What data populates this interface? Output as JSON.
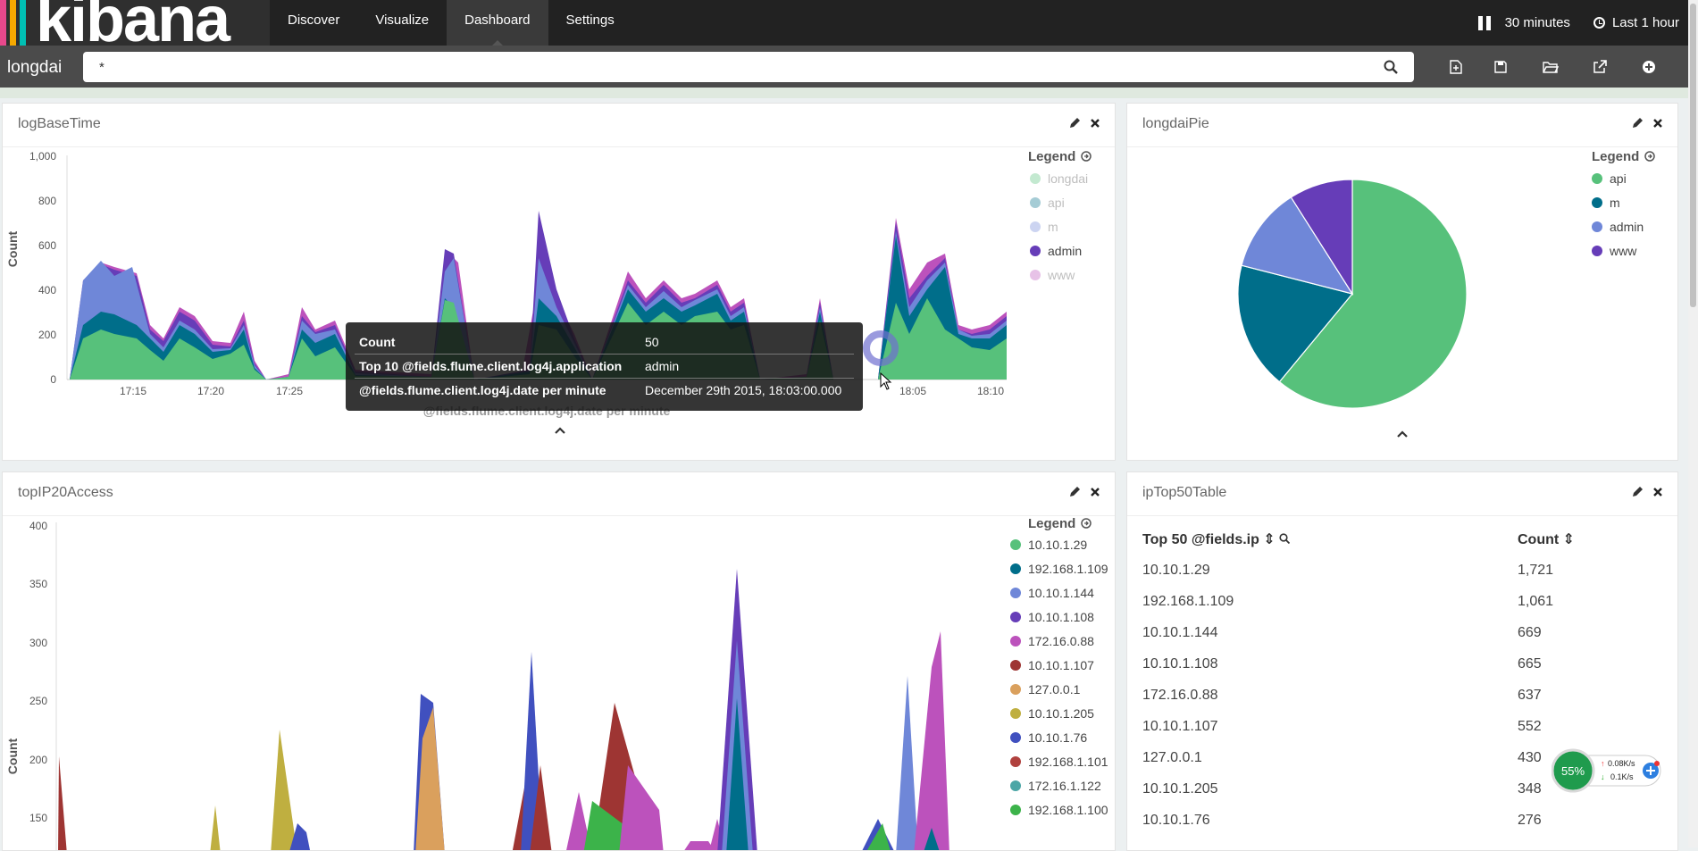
{
  "app": {
    "name": "kibana"
  },
  "nav": {
    "items": [
      {
        "label": "Discover"
      },
      {
        "label": "Visualize"
      },
      {
        "label": "Dashboard"
      },
      {
        "label": "Settings"
      }
    ],
    "active": "Dashboard",
    "refresh_interval": "30 minutes",
    "time_range": "Last 1 hour"
  },
  "dashboard": {
    "name": "longdai",
    "query": "*"
  },
  "colors": {
    "green": "#57c17b",
    "teal": "#006e8a",
    "blue": "#6f87d8",
    "purple": "#663db8",
    "pink": "#bc52bc",
    "red": "#9e3533",
    "orange": "#daa05d",
    "olive": "#bfaf40",
    "royal": "#4050bf",
    "brick": "#b0413e",
    "cyan": "#4ba6a6",
    "lime": "#3cb34a"
  },
  "panels": {
    "logBaseTime": {
      "title": "logBaseTime",
      "legend_title": "Legend",
      "legend": [
        {
          "label": "longdai",
          "color": "#57c17b",
          "faded": true
        },
        {
          "label": "api",
          "color": "#006e8a",
          "faded": true
        },
        {
          "label": "m",
          "color": "#6f87d8",
          "faded": true
        },
        {
          "label": "admin",
          "color": "#663db8",
          "faded": false
        },
        {
          "label": "www",
          "color": "#bc52bc",
          "faded": true
        }
      ],
      "ylabel": "Count",
      "xlabel": "@fields.flume.client.log4j.date per minute",
      "yticks": [
        "1,000",
        "800",
        "600",
        "400",
        "200",
        "0"
      ],
      "xticks_left": [
        "17:15",
        "17:20",
        "17:25"
      ],
      "xticks_right": [
        "18:05",
        "18:10"
      ],
      "tooltip": {
        "rows": [
          {
            "key": "Count",
            "value": "50"
          },
          {
            "key": "Top 10 @fields.flume.client.log4j.application",
            "value": "admin"
          },
          {
            "key": "@fields.flume.client.log4j.date per minute",
            "value": "December 29th 2015, 18:03:00.000"
          }
        ]
      }
    },
    "longdaiPie": {
      "title": "longdaiPie",
      "legend_title": "Legend",
      "legend": [
        {
          "label": "api",
          "color": "#57c17b"
        },
        {
          "label": "m",
          "color": "#006e8a"
        },
        {
          "label": "admin",
          "color": "#6f87d8"
        },
        {
          "label": "www",
          "color": "#663db8"
        }
      ]
    },
    "topIP20Access": {
      "title": "topIP20Access",
      "legend_title": "Legend",
      "ylabel": "Count",
      "yticks": [
        "400",
        "350",
        "300",
        "250",
        "200",
        "150"
      ],
      "legend": [
        {
          "label": "10.10.1.29",
          "color": "#57c17b"
        },
        {
          "label": "192.168.1.109",
          "color": "#006e8a"
        },
        {
          "label": "10.10.1.144",
          "color": "#6f87d8"
        },
        {
          "label": "10.10.1.108",
          "color": "#663db8"
        },
        {
          "label": "172.16.0.88",
          "color": "#bc52bc"
        },
        {
          "label": "10.10.1.107",
          "color": "#9e3533"
        },
        {
          "label": "127.0.0.1",
          "color": "#daa05d"
        },
        {
          "label": "10.10.1.205",
          "color": "#bfaf40"
        },
        {
          "label": "10.10.1.76",
          "color": "#4050bf"
        },
        {
          "label": "192.168.1.101",
          "color": "#b0413e"
        },
        {
          "label": "172.16.1.122",
          "color": "#4ba6a6"
        },
        {
          "label": "192.168.1.100",
          "color": "#3cb34a"
        }
      ]
    },
    "ipTop50Table": {
      "title": "ipTop50Table",
      "col1": "Top 50 @fields.ip",
      "col2": "Count",
      "rows": [
        {
          "ip": "10.10.1.29",
          "count": "1,721"
        },
        {
          "ip": "192.168.1.109",
          "count": "1,061"
        },
        {
          "ip": "10.10.1.144",
          "count": "669"
        },
        {
          "ip": "10.10.1.108",
          "count": "665"
        },
        {
          "ip": "172.16.0.88",
          "count": "637"
        },
        {
          "ip": "10.10.1.107",
          "count": "552"
        },
        {
          "ip": "127.0.0.1",
          "count": "430"
        },
        {
          "ip": "10.10.1.205",
          "count": "348"
        },
        {
          "ip": "10.10.1.76",
          "count": "276"
        }
      ]
    }
  },
  "chart_data": [
    {
      "type": "area",
      "title": "logBaseTime",
      "xlabel": "@fields.flume.client.log4j.date per minute",
      "ylabel": "Count",
      "ylim": [
        0,
        1000
      ],
      "series_names": [
        "longdai",
        "api",
        "m",
        "admin",
        "www"
      ]
    },
    {
      "type": "pie",
      "title": "longdaiPie",
      "slices": [
        {
          "label": "api",
          "value": 61
        },
        {
          "label": "m",
          "value": 18
        },
        {
          "label": "admin",
          "value": 12
        },
        {
          "label": "www",
          "value": 9
        }
      ]
    },
    {
      "type": "area",
      "title": "topIP20Access",
      "ylabel": "Count",
      "ylim": [
        125,
        400
      ]
    },
    {
      "type": "table",
      "title": "ipTop50Table",
      "columns": [
        "Top 50 @fields.ip",
        "Count"
      ],
      "rows": [
        [
          "10.10.1.29",
          "1,721"
        ],
        [
          "192.168.1.109",
          "1,061"
        ],
        [
          "10.10.1.144",
          "669"
        ],
        [
          "10.10.1.108",
          "665"
        ],
        [
          "172.16.0.88",
          "637"
        ],
        [
          "10.10.1.107",
          "552"
        ],
        [
          "127.0.0.1",
          "430"
        ],
        [
          "10.10.1.205",
          "348"
        ],
        [
          "10.10.1.76",
          "276"
        ]
      ]
    }
  ],
  "widget": {
    "cpu": "55%",
    "up": "0.08K/s",
    "down": "0.1K/s"
  }
}
